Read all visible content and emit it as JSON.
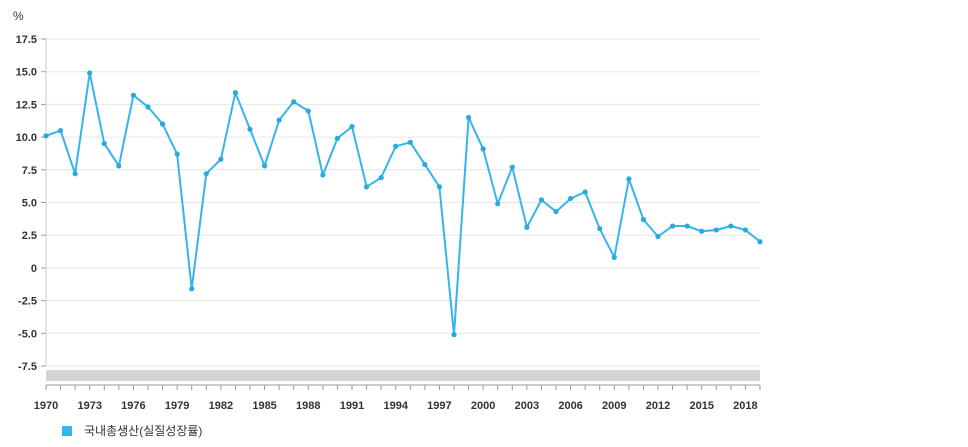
{
  "chart_data": {
    "type": "line",
    "unit": "%",
    "yticks": [
      "17.5",
      "15.0",
      "12.5",
      "10.0",
      "7.5",
      "5.0",
      "2.5",
      "0",
      "-2.5",
      "-5.0",
      "-7.5"
    ],
    "ytick_values": [
      17.5,
      15.0,
      12.5,
      10.0,
      7.5,
      5.0,
      2.5,
      0,
      -2.5,
      -5.0,
      -7.5
    ],
    "ylim": [
      -7.5,
      17.5
    ],
    "xlim": [
      1970,
      2019
    ],
    "xticks": [
      "1970",
      "1973",
      "1976",
      "1979",
      "1982",
      "1985",
      "1988",
      "1991",
      "1994",
      "1997",
      "2000",
      "2003",
      "2006",
      "2009",
      "2012",
      "2015",
      "2018"
    ],
    "xtick_values": [
      1970,
      1973,
      1976,
      1979,
      1982,
      1985,
      1988,
      1991,
      1994,
      1997,
      2000,
      2003,
      2006,
      2009,
      2012,
      2015,
      2018
    ],
    "grid": true,
    "legend_position": "bottom-left",
    "series": [
      {
        "name": "국내총생산(실질성장률)",
        "color": "#35b5ea",
        "x": [
          1970,
          1971,
          1972,
          1973,
          1974,
          1975,
          1976,
          1977,
          1978,
          1979,
          1980,
          1981,
          1982,
          1983,
          1984,
          1985,
          1986,
          1987,
          1988,
          1989,
          1990,
          1991,
          1992,
          1993,
          1994,
          1995,
          1996,
          1997,
          1998,
          1999,
          2000,
          2001,
          2002,
          2003,
          2004,
          2005,
          2006,
          2007,
          2008,
          2009,
          2010,
          2011,
          2012,
          2013,
          2014,
          2015,
          2016,
          2017,
          2018,
          2019
        ],
        "values": [
          10.1,
          10.5,
          7.2,
          14.9,
          9.5,
          7.8,
          13.2,
          12.3,
          11.0,
          8.7,
          -1.6,
          7.2,
          8.3,
          13.4,
          10.6,
          7.8,
          11.3,
          12.7,
          12.0,
          7.1,
          9.9,
          10.8,
          6.2,
          6.9,
          9.3,
          9.6,
          7.9,
          6.2,
          -5.1,
          11.5,
          9.1,
          4.9,
          7.7,
          3.1,
          5.2,
          4.3,
          5.3,
          5.8,
          3.0,
          0.8,
          6.8,
          3.7,
          2.4,
          3.2,
          3.2,
          2.8,
          2.9,
          3.2,
          2.9,
          2.0
        ]
      }
    ],
    "marker_color": "#2aa8e0",
    "scrollbar_color": "#d4d4d4",
    "grid_color": "#e6e6e6"
  }
}
